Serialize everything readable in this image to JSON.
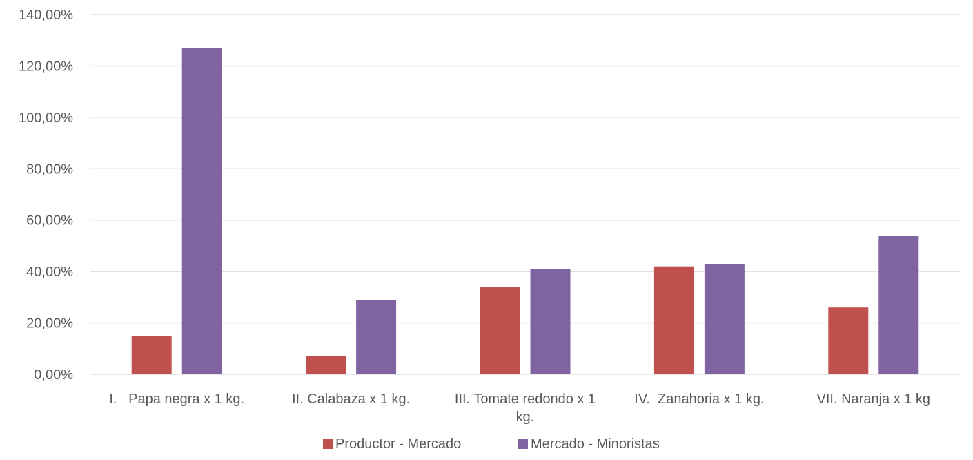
{
  "chart_data": {
    "type": "bar",
    "title": "",
    "xlabel": "",
    "ylabel": "",
    "categories": [
      [
        "I.   Papa negra x 1 kg."
      ],
      [
        "II. Calabaza x 1 kg."
      ],
      [
        "III. Tomate redondo x 1",
        "kg."
      ],
      [
        "IV.  Zanahoria x 1 kg."
      ],
      [
        "VII. Naranja x 1 kg"
      ]
    ],
    "series": [
      {
        "name": "Productor - Mercado",
        "color": "#c0504d",
        "values": [
          15,
          7,
          34,
          42,
          26
        ]
      },
      {
        "name": "Mercado - Minoristas",
        "color": "#8064a2",
        "values": [
          127,
          29,
          41,
          43,
          54
        ]
      }
    ],
    "ylim": [
      0,
      140
    ],
    "yticks": [
      0,
      20,
      40,
      60,
      80,
      100,
      120,
      140
    ],
    "ytick_labels": [
      "0,00%",
      "20,00%",
      "40,00%",
      "60,00%",
      "80,00%",
      "100,00%",
      "120,00%",
      "140,00%"
    ],
    "grid": true,
    "legend": "bottom-center"
  }
}
